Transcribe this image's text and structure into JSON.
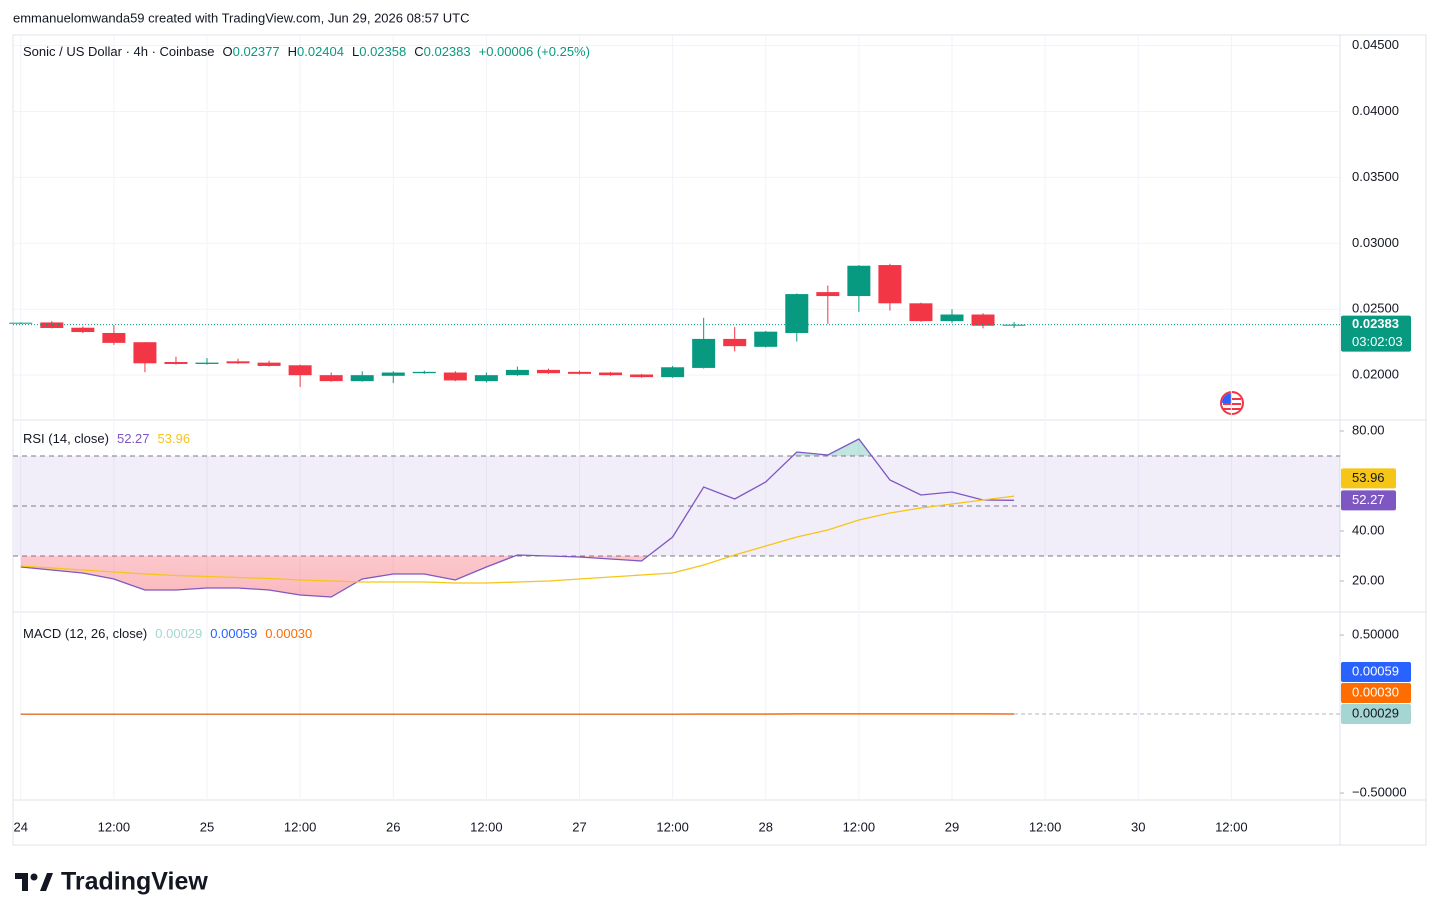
{
  "header": {
    "credit": "emmanuelomwanda59 created with TradingView.com, Jun 29, 2026 08:57 UTC"
  },
  "footer": {
    "brand": "TradingView"
  },
  "chart_data": [
    {
      "type": "candlestick",
      "title": "Sonic / US Dollar · 4h · Coinbase",
      "legend_keys": [
        "O",
        "H",
        "L",
        "C"
      ],
      "change": "+0.00006 (+0.25%)",
      "countdown": "03:02:03",
      "x": [
        0,
        4,
        8,
        12,
        16,
        20,
        24,
        28,
        32,
        36,
        40,
        44,
        48,
        52,
        56,
        60,
        64,
        68,
        72,
        76,
        80,
        84,
        88,
        92,
        96,
        100,
        104,
        108,
        112,
        116,
        120,
        124,
        128
      ],
      "open": [
        0.02393,
        0.024,
        0.0236,
        0.0232,
        0.0225,
        0.021,
        0.02085,
        0.02105,
        0.02095,
        0.02075,
        0.02,
        0.01955,
        0.01995,
        0.02015,
        0.0202,
        0.01955,
        0.02,
        0.0204,
        0.02025,
        0.0202,
        0.02005,
        0.01985,
        0.02055,
        0.02275,
        0.02215,
        0.0232,
        0.0263,
        0.026,
        0.02835,
        0.02545,
        0.0241,
        0.0246,
        0.02377
      ],
      "high": [
        0.024,
        0.0241,
        0.0237,
        0.0238,
        0.0225,
        0.0214,
        0.0213,
        0.02125,
        0.0211,
        0.0208,
        0.0202,
        0.0203,
        0.0203,
        0.02035,
        0.0203,
        0.0202,
        0.02065,
        0.0205,
        0.02035,
        0.02025,
        0.0201,
        0.0207,
        0.02435,
        0.02365,
        0.02335,
        0.0262,
        0.0268,
        0.02835,
        0.02845,
        0.0255,
        0.025,
        0.0247,
        0.02404
      ],
      "low": [
        0.0239,
        0.02355,
        0.0232,
        0.0223,
        0.02023,
        0.0208,
        0.0208,
        0.02085,
        0.02065,
        0.0191,
        0.0195,
        0.0195,
        0.0194,
        0.0201,
        0.01955,
        0.01945,
        0.01995,
        0.0201,
        0.02005,
        0.01995,
        0.0198,
        0.0198,
        0.0205,
        0.0218,
        0.0221,
        0.02255,
        0.0239,
        0.0248,
        0.0249,
        0.02405,
        0.02395,
        0.02355,
        0.02358
      ],
      "close": [
        0.02398,
        0.02358,
        0.02327,
        0.02245,
        0.0209,
        0.02085,
        0.02095,
        0.0209,
        0.0207,
        0.02,
        0.01955,
        0.02,
        0.0202,
        0.02025,
        0.0196,
        0.02,
        0.0204,
        0.02015,
        0.0201,
        0.02,
        0.01985,
        0.0206,
        0.02275,
        0.0222,
        0.0233,
        0.02615,
        0.026,
        0.0283,
        0.02545,
        0.0241,
        0.0246,
        0.02375,
        0.02383
      ],
      "up_color": "#089981",
      "down_color": "#f23645",
      "xlim": [
        -1,
        170
      ],
      "xticks": [
        {
          "value": 0,
          "label": "24"
        },
        {
          "value": 12,
          "label": "12:00"
        },
        {
          "value": 24,
          "label": "25"
        },
        {
          "value": 36,
          "label": "12:00"
        },
        {
          "value": 48,
          "label": "26"
        },
        {
          "value": 60,
          "label": "12:00"
        },
        {
          "value": 72,
          "label": "27"
        },
        {
          "value": 84,
          "label": "12:00"
        },
        {
          "value": 96,
          "label": "28"
        },
        {
          "value": 108,
          "label": "12:00"
        },
        {
          "value": 120,
          "label": "29"
        },
        {
          "value": 132,
          "label": "12:00"
        },
        {
          "value": 144,
          "label": "30"
        },
        {
          "value": 156,
          "label": "12:00"
        }
      ],
      "ylim": [
        0.0166,
        0.0458
      ],
      "yticks": [
        {
          "value": 0.02,
          "label": "0.02000"
        },
        {
          "value": 0.025,
          "label": "0.02500"
        },
        {
          "value": 0.03,
          "label": "0.03000"
        },
        {
          "value": 0.035,
          "label": "0.03500"
        },
        {
          "value": 0.04,
          "label": "0.04000"
        },
        {
          "value": 0.045,
          "label": "0.04500"
        }
      ],
      "grid": true
    },
    {
      "type": "line",
      "title": "RSI (14, close)",
      "x": [
        0,
        4,
        8,
        12,
        16,
        20,
        24,
        28,
        32,
        36,
        40,
        44,
        48,
        52,
        56,
        60,
        64,
        68,
        72,
        76,
        80,
        84,
        88,
        92,
        96,
        100,
        104,
        108,
        112,
        116,
        120,
        124,
        128
      ],
      "series": [
        {
          "color": "#7e57c2",
          "values": [
            25.6,
            24.4,
            23.2,
            20.8,
            16.4,
            16.4,
            17.2,
            17.2,
            16.4,
            14.4,
            13.6,
            20.8,
            22.8,
            22.8,
            20.4,
            25.6,
            30.4,
            30,
            29.6,
            28.8,
            28,
            37.6,
            57.6,
            52.8,
            59.6,
            71.6,
            70.4,
            76.8,
            60.4,
            54.4,
            55.6,
            52.4,
            52.27
          ]
        },
        {
          "color": "#f5c518",
          "values": [
            26,
            25.2,
            24.4,
            23.6,
            22.8,
            22.2,
            21.8,
            21.4,
            21,
            20.4,
            20,
            19.6,
            19.6,
            19.6,
            19.2,
            19.2,
            19.6,
            20,
            20.8,
            21.6,
            22.4,
            23.2,
            26.4,
            30.4,
            34,
            37.6,
            40.4,
            44.4,
            47.2,
            49.2,
            50.8,
            52.4,
            53.96
          ]
        }
      ],
      "bands": [
        30,
        50,
        70
      ],
      "band_color": "#7e57c2",
      "ylim": [
        7.6,
        84.4
      ],
      "yticks": [
        {
          "value": 20,
          "label": "20.00"
        },
        {
          "value": 40,
          "label": "40.00"
        },
        {
          "value": 80,
          "label": "80.00"
        }
      ]
    },
    {
      "type": "macd",
      "title": "MACD (12, 26, close)",
      "x": [
        0,
        4,
        8,
        12,
        16,
        20,
        24,
        28,
        32,
        36,
        40,
        44,
        48,
        52,
        56,
        60,
        64,
        68,
        72,
        76,
        80,
        84,
        88,
        92,
        96,
        100,
        104,
        108,
        112,
        116,
        120,
        124,
        128
      ],
      "series": [
        {
          "color": "#a5d6d3",
          "value_label": "0.00029",
          "values": [
            -5e-05,
            -8e-05,
            -0.0001,
            -0.00014,
            -0.00021,
            -0.00023,
            -0.0002,
            -0.00016,
            -0.00012,
            -0.00012,
            -0.00012,
            -7e-05,
            -3e-05,
            2e-05,
            4e-05,
            6e-05,
            0.0001,
            0.00011,
            0.00012,
            0.00011,
            0.0001,
            0.00013,
            0.00028,
            0.00034,
            0.00039,
            0.00063,
            0.00076,
            0.001,
            0.00093,
            0.00072,
            0.00058,
            0.00042,
            0.00029
          ]
        },
        {
          "color": "#2962ff",
          "value_label": "0.00059",
          "values": [
            -0.0001,
            -0.00015,
            -0.0002,
            -0.00028,
            -0.0004,
            -0.00048,
            -0.0005,
            -0.0005,
            -0.00049,
            -0.00052,
            -0.00055,
            -0.00052,
            -0.00048,
            -0.00043,
            -0.0004,
            -0.00036,
            -0.0003,
            -0.00026,
            -0.00022,
            -0.0002,
            -0.00019,
            -0.00012,
            0.0001,
            0.00024,
            0.00038,
            0.00068,
            0.00088,
            0.00118,
            0.00116,
            0.00098,
            0.00086,
            0.00071,
            0.00059
          ]
        },
        {
          "color": "#ff6d00",
          "value_label": "0.00030",
          "values": [
            -5e-05,
            -7e-05,
            -0.0001,
            -0.00014,
            -0.00019,
            -0.00025,
            -0.0003,
            -0.00034,
            -0.00037,
            -0.0004,
            -0.00043,
            -0.00045,
            -0.00045,
            -0.00045,
            -0.00044,
            -0.00042,
            -0.0004,
            -0.00037,
            -0.00034,
            -0.00031,
            -0.00029,
            -0.00025,
            -0.00018,
            -0.0001,
            -1e-05,
            5e-05,
            0.00012,
            0.00018,
            0.00023,
            0.00026,
            0.00028,
            0.00029,
            0.0003
          ]
        }
      ],
      "ylim": [
        -0.544,
        0.646
      ],
      "yticks": [
        {
          "value": -0.5,
          "label": "−0.50000"
        },
        {
          "value": 0.5,
          "label": "0.50000"
        }
      ]
    }
  ]
}
